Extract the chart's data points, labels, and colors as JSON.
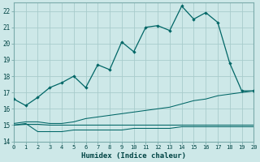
{
  "xlabel": "Humidex (Indice chaleur)",
  "background_color": "#cde8e8",
  "grid_color": "#a8cccc",
  "line_color": "#006666",
  "x_min": 0,
  "x_max": 20,
  "y_min": 14,
  "y_max": 22.5,
  "series": {
    "main": {
      "x": [
        0,
        1,
        2,
        3,
        4,
        5,
        6,
        7,
        8,
        9,
        10,
        11,
        12,
        13,
        14,
        15,
        16,
        17,
        18,
        19,
        20
      ],
      "y": [
        16.6,
        16.2,
        16.7,
        17.3,
        17.6,
        18.0,
        17.3,
        18.7,
        18.4,
        20.1,
        19.5,
        21.0,
        21.1,
        20.8,
        22.3,
        21.5,
        21.9,
        21.3,
        18.8,
        17.1,
        17.1
      ]
    },
    "line1": {
      "x": [
        0,
        1,
        2,
        3,
        4,
        5,
        6,
        7,
        8,
        9,
        10,
        11,
        12,
        13,
        14,
        15,
        16,
        17,
        18,
        19,
        20
      ],
      "y": [
        15.1,
        15.2,
        15.2,
        15.1,
        15.1,
        15.2,
        15.4,
        15.5,
        15.6,
        15.7,
        15.8,
        15.9,
        16.0,
        16.1,
        16.3,
        16.5,
        16.6,
        16.8,
        16.9,
        17.0,
        17.1
      ]
    },
    "line2": {
      "x": [
        0,
        1,
        2,
        3,
        4,
        5,
        6,
        7,
        8,
        9,
        10,
        11,
        12,
        13,
        14,
        15,
        16,
        17,
        18,
        19,
        20
      ],
      "y": [
        15.0,
        15.05,
        15.05,
        15.0,
        15.0,
        15.0,
        15.0,
        15.0,
        15.0,
        15.0,
        15.0,
        15.0,
        15.0,
        15.0,
        15.0,
        15.0,
        15.0,
        15.0,
        15.0,
        15.0,
        15.0
      ]
    },
    "line3": {
      "x": [
        0,
        1,
        2,
        3,
        4,
        5,
        6,
        7,
        8,
        9,
        10,
        11,
        12,
        13,
        14,
        15,
        16,
        17,
        18,
        19,
        20
      ],
      "y": [
        15.0,
        15.1,
        14.6,
        14.6,
        14.6,
        14.7,
        14.7,
        14.7,
        14.7,
        14.7,
        14.8,
        14.8,
        14.8,
        14.8,
        14.9,
        14.9,
        14.9,
        14.9,
        14.9,
        14.9,
        14.9
      ]
    }
  }
}
